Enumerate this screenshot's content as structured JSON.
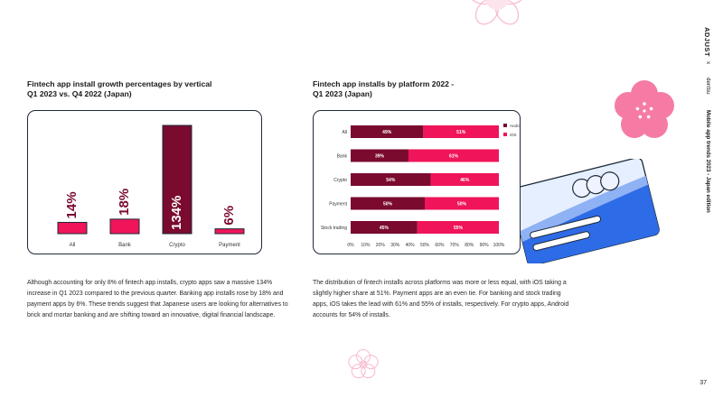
{
  "branding": {
    "adjust": "ADJUST",
    "x": "x",
    "partner": "dentsu",
    "report_title": "Mobile app trends 2023 - Japan edition"
  },
  "page_number": "37",
  "colors": {
    "pink": "#f0145a",
    "maroon": "#7a0a2e",
    "panel_border": "#1e2a3a"
  },
  "left": {
    "title_line1": "Fintech app install growth percentages by vertical",
    "title_line2": "Q1 2023 vs. Q4 2022 (Japan)",
    "body": "Although accounting for only 8% of fintech app installs, crypto apps saw a massive 134% increase in Q1 2023 compared to the previous quarter. Banking app installs rose by 18% and payment apps by 6%. These trends suggest that Japanese users are looking for alternatives to brick and mortar banking and are shifting toward an innovative, digital financial landscape."
  },
  "right": {
    "title_line1": "Fintech app installs by platform 2022 -",
    "title_line2": "Q1 2023 (Japan)",
    "body": "The distribution of fintech installs across platforms was more or less equal, with iOS taking a slightly higher share at 51%. Payment apps are an even tie. For banking and stock trading apps, iOS takes the lead with 61% and 55% of installs, respectively. For crypto apps, Android accounts for 54% of installs."
  },
  "chart_data": [
    {
      "type": "bar",
      "title": "Fintech app install growth percentages by vertical Q1 2023 vs. Q4 2022 (Japan)",
      "categories": [
        "All",
        "Bank",
        "Crypto",
        "Payment"
      ],
      "values": [
        14,
        18,
        134,
        6
      ],
      "labels": [
        "14%",
        "18%",
        "134%",
        "6%"
      ],
      "bar_colors": [
        "#f0145a",
        "#f0145a",
        "#7a0a2e",
        "#f0145a"
      ],
      "ylim": [
        0,
        134
      ],
      "xlabel": "",
      "ylabel": ""
    },
    {
      "type": "bar",
      "orientation": "horizontal",
      "stacked": true,
      "title": "Fintech app installs by platform 2022 - Q1 2023 (Japan)",
      "categories": [
        "All",
        "Bank",
        "Crypto",
        "Payment",
        "Stock trading"
      ],
      "series": [
        {
          "name": "Android",
          "values": [
            49,
            39,
            54,
            50,
            45
          ],
          "color": "#7a0a2e"
        },
        {
          "name": "iOS",
          "values": [
            51,
            61,
            46,
            50,
            55
          ],
          "color": "#f0145a"
        }
      ],
      "xticks": [
        "0%",
        "10%",
        "20%",
        "30%",
        "40%",
        "50%",
        "60%",
        "70%",
        "80%",
        "90%",
        "100%"
      ],
      "xlim": [
        0,
        100
      ],
      "legend": "top-right"
    }
  ]
}
